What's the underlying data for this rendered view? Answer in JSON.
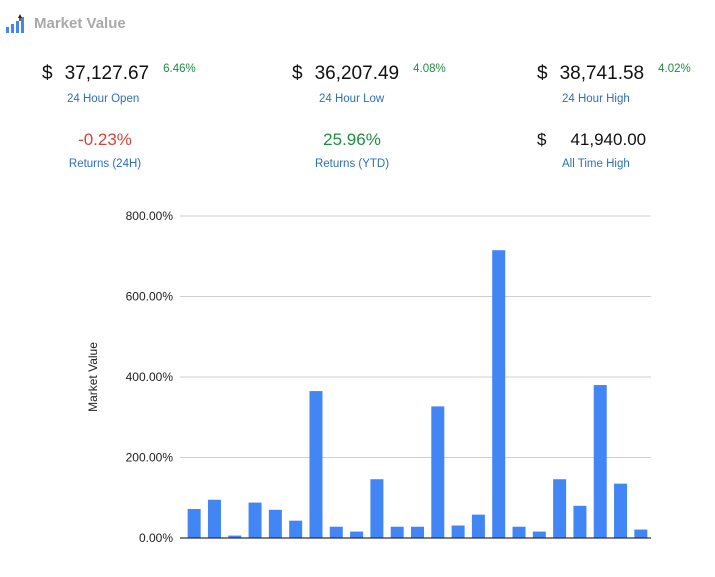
{
  "header": {
    "title": "Market Value",
    "icon": "chart-logo-icon"
  },
  "metrics": {
    "open": {
      "currency": "$",
      "value": "37,127.67",
      "pct": "6.46%",
      "label": "24 Hour Open"
    },
    "low": {
      "currency": "$",
      "value": "36,207.49",
      "pct": "4.08%",
      "label": "24 Hour Low"
    },
    "high": {
      "currency": "$",
      "value": "38,741.58",
      "pct": "4.02%",
      "label": "24 Hour High"
    }
  },
  "returns": {
    "r24h": {
      "value": "-0.23%",
      "label": "Returns (24H)",
      "color": "#d0453b"
    },
    "ytd": {
      "value": "25.96%",
      "label": "Returns (YTD)",
      "color": "#1e8e3e"
    }
  },
  "ath": {
    "currency": "$",
    "value": "41,940.00",
    "label": "All Time High"
  },
  "chart_data": {
    "type": "bar",
    "ylabel": "Market Value",
    "ylim": [
      0,
      800
    ],
    "yticks": [
      "0.00%",
      "200.00%",
      "400.00%",
      "600.00%",
      "800.00%"
    ],
    "grid": true,
    "bar_color": "#4285f4",
    "values": [
      72,
      95,
      6,
      88,
      70,
      43,
      365,
      28,
      16,
      146,
      28,
      28,
      327,
      31,
      58,
      715,
      28,
      16,
      146,
      80,
      380,
      135,
      21
    ]
  }
}
